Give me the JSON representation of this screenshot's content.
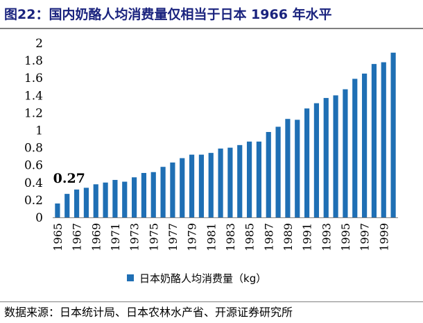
{
  "title": "图22：国内奶酪人均消费量仅相当于日本 1966 年水平",
  "source": "数据来源：日本统计局、日本农林水产省、开源证券研究所",
  "chart_data": {
    "type": "bar",
    "title": "",
    "xlabel": "",
    "ylabel": "",
    "ylim": [
      0,
      2
    ],
    "yticks": [
      "0",
      "0.2",
      "0.4",
      "0.6",
      "0.8",
      "1",
      "1.2",
      "1.4",
      "1.6",
      "1.8",
      "2"
    ],
    "xtick_labels": [
      "1965",
      "1967",
      "1969",
      "1971",
      "1973",
      "1975",
      "1977",
      "1979",
      "1981",
      "1983",
      "1985",
      "1987",
      "1989",
      "1991",
      "1993",
      "1995",
      "1997",
      "1999"
    ],
    "categories": [
      "1965",
      "1966",
      "1967",
      "1968",
      "1969",
      "1970",
      "1971",
      "1972",
      "1973",
      "1974",
      "1975",
      "1976",
      "1977",
      "1978",
      "1979",
      "1980",
      "1981",
      "1982",
      "1983",
      "1984",
      "1985",
      "1986",
      "1987",
      "1988",
      "1989",
      "1990",
      "1991",
      "1992",
      "1993",
      "1994",
      "1995",
      "1996",
      "1997",
      "1998",
      "1999",
      "2000"
    ],
    "series": [
      {
        "name": "日本奶酪人均消费量（kg）",
        "color": "#1f6fb4",
        "values": [
          0.16,
          0.27,
          0.32,
          0.34,
          0.38,
          0.4,
          0.43,
          0.41,
          0.46,
          0.51,
          0.52,
          0.58,
          0.63,
          0.68,
          0.72,
          0.72,
          0.74,
          0.79,
          0.8,
          0.83,
          0.87,
          0.87,
          0.98,
          1.04,
          1.13,
          1.12,
          1.25,
          1.31,
          1.37,
          1.4,
          1.47,
          1.59,
          1.65,
          1.76,
          1.78,
          1.89
        ]
      }
    ],
    "annotation": {
      "text": "0.27",
      "category": "1966"
    },
    "legend_position": "bottom",
    "grid": false
  }
}
